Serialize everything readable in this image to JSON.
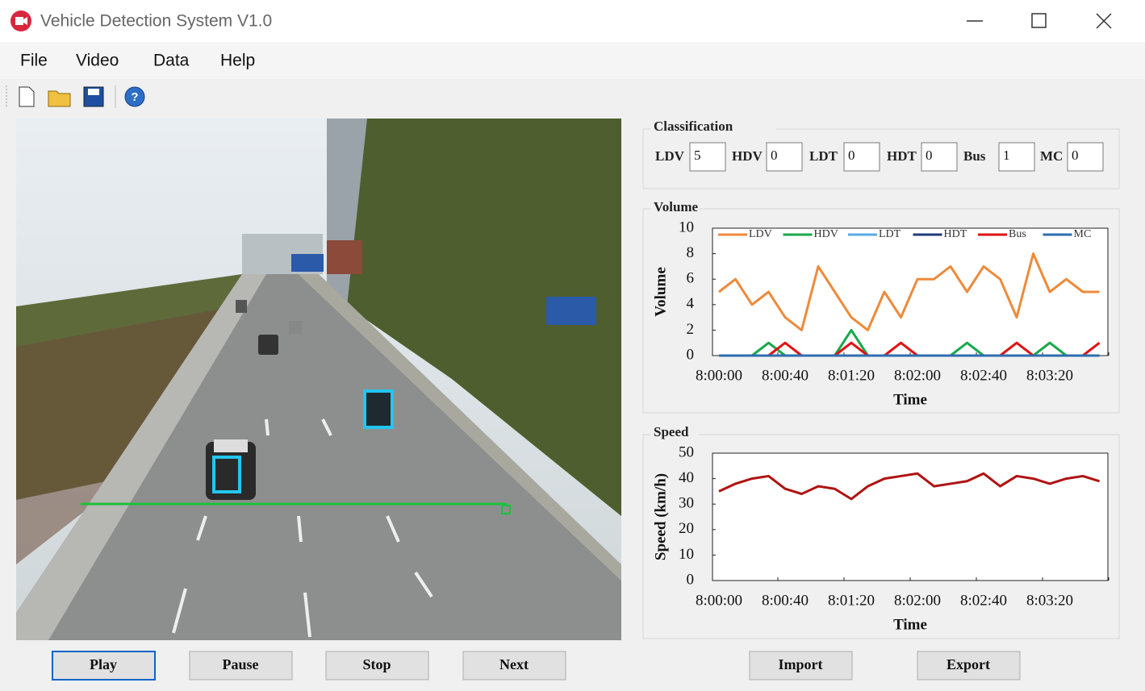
{
  "window": {
    "title": "Vehicle Detection System V1.0"
  },
  "menu": [
    "File",
    "Video",
    "Data",
    "Help"
  ],
  "classification": {
    "title": "Classification",
    "fields": [
      {
        "label": "LDV",
        "value": 5
      },
      {
        "label": "HDV",
        "value": 0
      },
      {
        "label": "LDT",
        "value": 0
      },
      {
        "label": "HDT",
        "value": 0
      },
      {
        "label": "Bus",
        "value": 1
      },
      {
        "label": "MC",
        "value": 0
      }
    ]
  },
  "chart_data": [
    {
      "type": "line",
      "title": "Volume",
      "y_label": "Volume",
      "x_label": "Time",
      "categories": [
        "8:00:00",
        null,
        null,
        null,
        "8:00:40",
        null,
        null,
        null,
        "8:01:20",
        null,
        null,
        null,
        "8:02:00",
        null,
        null,
        null,
        "8:02:40",
        null,
        null,
        null,
        "8:03:20",
        null,
        null,
        null
      ],
      "ylim": [
        0,
        10
      ],
      "yticks": [
        0,
        2,
        4,
        6,
        8,
        10
      ],
      "grid": false,
      "legend": "top",
      "series": [
        {
          "name": "LDV",
          "color": "#ee8a3a",
          "values": [
            5,
            6,
            4,
            5,
            3,
            2,
            7,
            5,
            3,
            2,
            5,
            3,
            6,
            6,
            7,
            5,
            7,
            6,
            3,
            8,
            5,
            6,
            5,
            5
          ]
        },
        {
          "name": "HDV",
          "color": "#19a84a",
          "values": [
            0,
            0,
            0,
            1,
            0,
            0,
            0,
            0,
            2,
            0,
            0,
            0,
            0,
            0,
            0,
            1,
            0,
            0,
            0,
            0,
            1,
            0,
            0,
            0
          ]
        },
        {
          "name": "LDT",
          "color": "#5aa9e6",
          "values": [
            0,
            0,
            0,
            0,
            0,
            0,
            0,
            0,
            0,
            0,
            0,
            0,
            0,
            0,
            0,
            0,
            0,
            0,
            0,
            0,
            0,
            0,
            0,
            0
          ]
        },
        {
          "name": "HDT",
          "color": "#1f3a7a",
          "values": [
            0,
            0,
            0,
            0,
            0,
            0,
            0,
            0,
            0,
            0,
            0,
            0,
            0,
            0,
            0,
            0,
            0,
            0,
            0,
            0,
            0,
            0,
            0,
            0
          ]
        },
        {
          "name": "Bus",
          "color": "#e01212",
          "values": [
            0,
            0,
            0,
            0,
            1,
            0,
            0,
            0,
            1,
            0,
            0,
            1,
            0,
            0,
            0,
            0,
            0,
            0,
            1,
            0,
            0,
            0,
            0,
            1
          ]
        },
        {
          "name": "MC",
          "color": "#2e6db0",
          "values": [
            0,
            0,
            0,
            0,
            0,
            0,
            0,
            0,
            0,
            0,
            0,
            0,
            0,
            0,
            0,
            0,
            0,
            0,
            0,
            0,
            0,
            0,
            0,
            0
          ]
        }
      ]
    },
    {
      "type": "line",
      "title": "Speed",
      "y_label": "Speed (km/h)",
      "x_label": "Time",
      "categories": [
        "8:00:00",
        null,
        null,
        null,
        "8:00:40",
        null,
        null,
        null,
        "8:01:20",
        null,
        null,
        null,
        "8:02:00",
        null,
        null,
        null,
        "8:02:40",
        null,
        null,
        null,
        "8:03:20",
        null,
        null,
        null
      ],
      "ylim": [
        0,
        50
      ],
      "yticks": [
        0,
        10,
        20,
        30,
        40,
        50
      ],
      "grid": false,
      "series": [
        {
          "color": "#b01212",
          "values": [
            35,
            38,
            40,
            41,
            36,
            34,
            37,
            36,
            32,
            37,
            40,
            41,
            42,
            37,
            38,
            39,
            42,
            37,
            41,
            40,
            38,
            40,
            41,
            39
          ]
        }
      ]
    }
  ],
  "buttons": {
    "video": [
      "Play",
      "Pause",
      "Stop",
      "Next"
    ],
    "data": [
      "Import",
      "Export"
    ]
  }
}
